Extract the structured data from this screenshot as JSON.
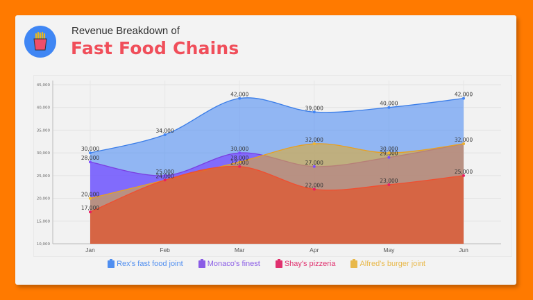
{
  "header": {
    "subtitle": "Revenue Breakdown of",
    "title": "Fast Food Chains",
    "icon": "french-fries-icon"
  },
  "chart_data": {
    "type": "area",
    "categories": [
      "Jan",
      "Feb",
      "Mar",
      "Apr",
      "May",
      "Jun"
    ],
    "ylim": [
      10000,
      45000
    ],
    "yticks": [
      10000,
      15000,
      20000,
      25000,
      30000,
      35000,
      40000,
      45000
    ],
    "ytick_labels": [
      "10,000",
      "15,000",
      "20,000",
      "25,000",
      "30,000",
      "35,000",
      "40,000",
      "45,000"
    ],
    "grid": true,
    "legend_placement": "bottom",
    "series": [
      {
        "name": "Rex's fast food joint",
        "color": "#4285f4",
        "values": [
          30000,
          34000,
          42000,
          39000,
          40000,
          42000
        ],
        "labels": [
          "30,000",
          "34,000",
          "42,000",
          "39,000",
          "40,000",
          "42,000"
        ]
      },
      {
        "name": "Monaco's finest",
        "color": "#7c4dff",
        "values": [
          28000,
          25000,
          30000,
          27000,
          29000,
          32000
        ],
        "labels": [
          "28,000",
          "25,000",
          "30,000",
          "27,000",
          "29,000",
          ""
        ]
      },
      {
        "name": "Alfred's burger joint",
        "color": "#f0b429",
        "values": [
          20000,
          24000,
          28000,
          32000,
          30000,
          32000
        ],
        "labels": [
          "20,000",
          "24,000",
          "28,000",
          "32,000",
          "30,000",
          "32,000"
        ]
      },
      {
        "name": "Shay's pizzeria",
        "color": "#e91e63",
        "values": [
          17000,
          24000,
          27000,
          22000,
          23000,
          25000
        ],
        "labels": [
          "17,000",
          "",
          "27,000",
          "22,000",
          "23,000",
          "25,000"
        ]
      }
    ]
  },
  "legend": [
    {
      "label": "Rex's fast food joint",
      "color": "#4f8ef0"
    },
    {
      "label": "Monaco's finest",
      "color": "#8a5ce6"
    },
    {
      "label": "Shay's pizzeria",
      "color": "#e0306e"
    },
    {
      "label": "Alfred's burger joint",
      "color": "#e8b84a"
    }
  ]
}
